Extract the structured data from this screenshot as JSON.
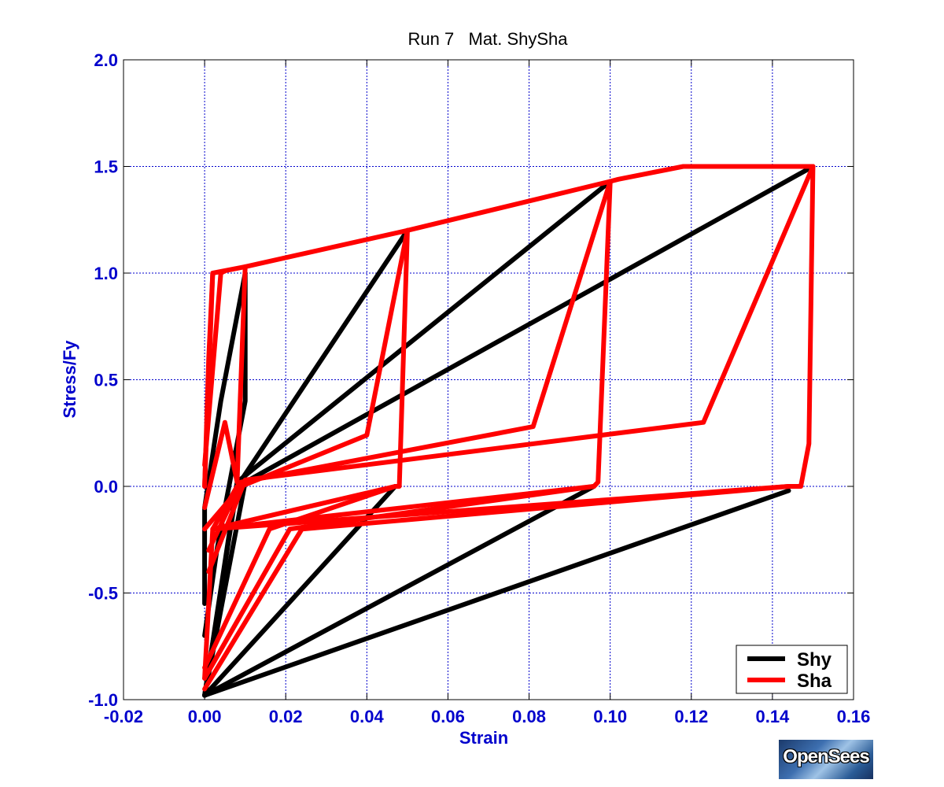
{
  "chart_data": {
    "type": "line",
    "title": "Run 7   Mat. ShySha",
    "xlabel": "Strain",
    "ylabel": "Stress/Fy",
    "xlim": [
      -0.02,
      0.16
    ],
    "ylim": [
      -1.0,
      2.0
    ],
    "xticks": [
      -0.02,
      0.0,
      0.02,
      0.04,
      0.06,
      0.08,
      0.1,
      0.12,
      0.14,
      0.16
    ],
    "xtick_labels": [
      "-0.02",
      "0.00",
      "0.02",
      "0.04",
      "0.06",
      "0.08",
      "0.10",
      "0.12",
      "0.14",
      "0.16"
    ],
    "yticks": [
      -1.0,
      -0.5,
      0.0,
      0.5,
      1.0,
      1.5,
      2.0
    ],
    "ytick_labels": [
      "-1.0",
      "-0.5",
      "0.0",
      "0.5",
      "1.0",
      "1.5",
      "2.0"
    ],
    "grid": true,
    "legend_position": "bottom-right",
    "colors": {
      "axis_text": "#0000cc",
      "grid": "#0000cc",
      "shy": "#000000",
      "sha": "#ff0000"
    },
    "series": [
      {
        "name": "Shy",
        "color": "#000000",
        "segments": [
          [
            [
              0.0,
              -0.55
            ],
            [
              0.0,
              -0.1
            ],
            [
              0.004,
              0.4
            ],
            [
              0.01,
              1.0
            ]
          ],
          [
            [
              0.0,
              -0.7
            ],
            [
              0.003,
              -0.3
            ],
            [
              0.01,
              0.4
            ],
            [
              0.01,
              1.0
            ]
          ],
          [
            [
              0.0,
              -0.98
            ],
            [
              0.008,
              0.0
            ],
            [
              0.05,
              1.2
            ]
          ],
          [
            [
              0.0,
              -0.98
            ],
            [
              0.008,
              0.02
            ],
            [
              0.1,
              1.43
            ]
          ],
          [
            [
              0.0,
              -0.98
            ],
            [
              0.01,
              0.02
            ],
            [
              0.15,
              1.5
            ]
          ],
          [
            [
              0.0,
              -0.98
            ],
            [
              0.047,
              0.0
            ]
          ],
          [
            [
              0.0,
              -0.98
            ],
            [
              0.096,
              0.0
            ]
          ],
          [
            [
              0.0,
              -0.98
            ],
            [
              0.144,
              -0.02
            ]
          ]
        ]
      },
      {
        "name": "Sha",
        "color": "#ff0000",
        "segments": [
          [
            [
              0.0,
              0.0
            ],
            [
              0.002,
              1.0
            ],
            [
              0.01,
              1.03
            ],
            [
              0.05,
              1.2
            ],
            [
              0.1,
              1.43
            ],
            [
              0.102,
              1.44
            ],
            [
              0.118,
              1.5
            ],
            [
              0.15,
              1.5
            ]
          ],
          [
            [
              0.0,
              0.0
            ],
            [
              0.001,
              0.6
            ],
            [
              0.002,
              1.0
            ]
          ],
          [
            [
              0.0,
              0.1
            ],
            [
              0.004,
              1.0
            ],
            [
              0.005,
              1.01
            ]
          ],
          [
            [
              0.0,
              -0.1
            ],
            [
              0.005,
              0.3
            ],
            [
              0.008,
              0.02
            ],
            [
              0.01,
              1.03
            ]
          ],
          [
            [
              0.0,
              -0.2
            ],
            [
              0.009,
              0.0
            ],
            [
              0.04,
              0.24
            ],
            [
              0.05,
              1.2
            ]
          ],
          [
            [
              0.001,
              -0.3
            ],
            [
              0.009,
              0.02
            ],
            [
              0.081,
              0.28
            ],
            [
              0.1,
              1.43
            ]
          ],
          [
            [
              0.001,
              -0.4
            ],
            [
              0.01,
              0.03
            ],
            [
              0.123,
              0.3
            ],
            [
              0.15,
              1.5
            ]
          ],
          [
            [
              0.05,
              1.2
            ],
            [
              0.048,
              0.0
            ],
            [
              0.047,
              0.0
            ],
            [
              0.002,
              -0.2
            ]
          ],
          [
            [
              0.1,
              1.43
            ],
            [
              0.097,
              0.02
            ],
            [
              0.096,
              0.0
            ],
            [
              0.002,
              -0.2
            ]
          ],
          [
            [
              0.15,
              1.5
            ],
            [
              0.149,
              0.2
            ],
            [
              0.147,
              0.0
            ],
            [
              0.144,
              0.0
            ],
            [
              0.002,
              -0.2
            ]
          ],
          [
            [
              0.008,
              0.0
            ],
            [
              0.005,
              -0.1
            ],
            [
              0.002,
              -0.2
            ],
            [
              0.0,
              -0.9
            ]
          ],
          [
            [
              0.047,
              0.0
            ],
            [
              0.016,
              -0.2
            ],
            [
              0.0,
              -0.85
            ]
          ],
          [
            [
              0.096,
              0.0
            ],
            [
              0.021,
              -0.2
            ],
            [
              0.0,
              -0.9
            ]
          ],
          [
            [
              0.144,
              0.0
            ],
            [
              0.024,
              -0.2
            ],
            [
              0.0,
              -0.95
            ]
          ]
        ]
      }
    ]
  },
  "logo_text": "OpenSees"
}
